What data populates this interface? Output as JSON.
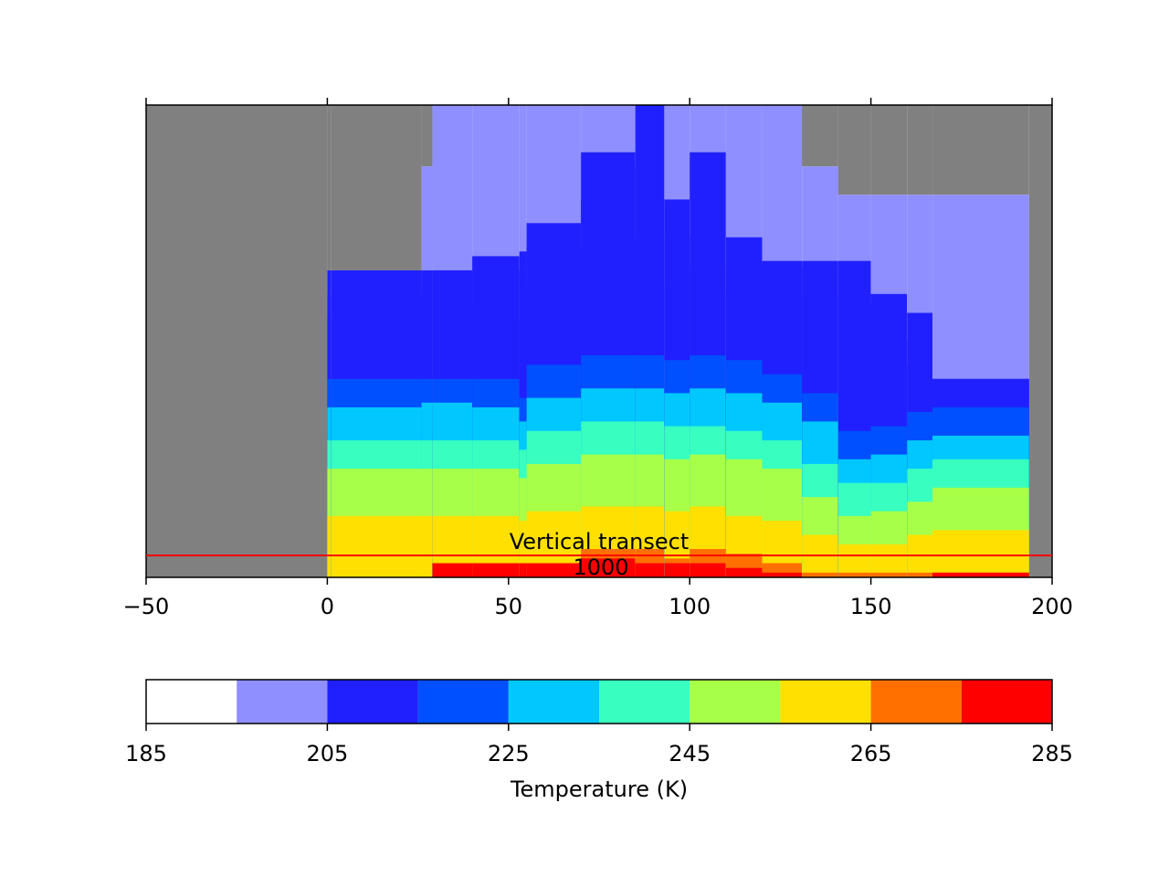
{
  "chart_data": {
    "type": "heatmap",
    "title": "",
    "xlabel": "",
    "ylabel": "",
    "xlim": [
      -50,
      200
    ],
    "x_ticks": [
      "−50",
      "0",
      "50",
      "100",
      "150",
      "200"
    ],
    "y_ticks_shown": false,
    "masked_region_color": "#808080",
    "masked_x_ranges": [
      [
        -50,
        0
      ],
      [
        193.5,
        200
      ]
    ],
    "annotations": [
      {
        "text": "Vertical transect",
        "color": "#000000"
      },
      {
        "text": "1000",
        "color": "#000000"
      }
    ],
    "transect_line_color": "#ff0000",
    "columns": [
      {
        "x_from": 0,
        "x_to": 1,
        "layer_tops": [
          0.65,
          0.65,
          0.65,
          0.6,
          0.55,
          0.42,
          0.36,
          0.29,
          0.23,
          0.13,
          0.0,
          0.0
        ]
      },
      {
        "x_from": 1,
        "x_to": 26,
        "layer_tops": [
          0.65,
          0.65,
          0.65,
          0.6,
          0.55,
          0.42,
          0.36,
          0.29,
          0.23,
          0.13,
          0.0,
          0.0
        ]
      },
      {
        "x_from": 26,
        "x_to": 29,
        "layer_tops": [
          0.87,
          0.87,
          0.65,
          0.6,
          0.55,
          0.42,
          0.37,
          0.29,
          0.23,
          0.13,
          0.0,
          0.0
        ]
      },
      {
        "x_from": 29,
        "x_to": 40,
        "layer_tops": [
          1.0,
          1.0,
          0.65,
          0.65,
          0.57,
          0.42,
          0.37,
          0.29,
          0.23,
          0.13,
          0.03,
          0.03
        ]
      },
      {
        "x_from": 40,
        "x_to": 53,
        "layer_tops": [
          1.0,
          1.0,
          0.68,
          0.65,
          0.57,
          0.42,
          0.36,
          0.29,
          0.23,
          0.13,
          0.03,
          0.03
        ]
      },
      {
        "x_from": 53,
        "x_to": 55,
        "layer_tops": [
          1.0,
          1.0,
          0.69,
          0.65,
          0.55,
          0.38,
          0.33,
          0.27,
          0.21,
          0.12,
          0.03,
          0.03
        ]
      },
      {
        "x_from": 55,
        "x_to": 70,
        "layer_tops": [
          1.0,
          1.0,
          0.75,
          0.7,
          0.62,
          0.45,
          0.38,
          0.31,
          0.24,
          0.14,
          0.03,
          0.03
        ]
      },
      {
        "x_from": 70,
        "x_to": 85,
        "layer_tops": [
          1.0,
          1.0,
          0.9,
          0.8,
          0.7,
          0.47,
          0.4,
          0.33,
          0.26,
          0.15,
          0.06,
          0.04
        ]
      },
      {
        "x_from": 85,
        "x_to": 93,
        "layer_tops": [
          1.0,
          1.0,
          1.0,
          0.87,
          0.72,
          0.47,
          0.4,
          0.33,
          0.26,
          0.15,
          0.06,
          0.03
        ]
      },
      {
        "x_from": 93,
        "x_to": 100,
        "layer_tops": [
          1.0,
          1.0,
          0.8,
          0.72,
          0.62,
          0.46,
          0.39,
          0.32,
          0.25,
          0.14,
          0.04,
          0.03
        ]
      },
      {
        "x_from": 100,
        "x_to": 110,
        "layer_tops": [
          1.0,
          1.0,
          0.9,
          0.72,
          0.66,
          0.47,
          0.4,
          0.32,
          0.26,
          0.15,
          0.06,
          0.03
        ]
      },
      {
        "x_from": 110,
        "x_to": 120,
        "layer_tops": [
          1.0,
          1.0,
          0.72,
          0.66,
          0.6,
          0.46,
          0.39,
          0.31,
          0.25,
          0.13,
          0.05,
          0.02
        ]
      },
      {
        "x_from": 120,
        "x_to": 131,
        "layer_tops": [
          1.0,
          1.0,
          0.67,
          0.66,
          0.6,
          0.43,
          0.37,
          0.29,
          0.23,
          0.12,
          0.03,
          0.01
        ]
      },
      {
        "x_from": 131,
        "x_to": 141,
        "layer_tops": [
          0.87,
          0.87,
          0.67,
          0.66,
          0.6,
          0.39,
          0.33,
          0.24,
          0.17,
          0.09,
          0.01,
          0.0
        ]
      },
      {
        "x_from": 141,
        "x_to": 150,
        "layer_tops": [
          0.81,
          0.81,
          0.67,
          0.66,
          0.6,
          0.31,
          0.25,
          0.2,
          0.13,
          0.07,
          0.01,
          0.0
        ]
      },
      {
        "x_from": 150,
        "x_to": 160,
        "layer_tops": [
          0.81,
          0.81,
          0.6,
          0.58,
          0.53,
          0.32,
          0.26,
          0.2,
          0.14,
          0.07,
          0.01,
          0.0
        ]
      },
      {
        "x_from": 160,
        "x_to": 167,
        "layer_tops": [
          0.81,
          0.81,
          0.56,
          0.5,
          0.45,
          0.35,
          0.29,
          0.23,
          0.16,
          0.09,
          0.01,
          0.0
        ]
      },
      {
        "x_from": 167,
        "x_to": 193.5,
        "layer_tops": [
          0.81,
          0.81,
          0.42,
          0.42,
          0.42,
          0.36,
          0.3,
          0.25,
          0.19,
          0.1,
          0.01,
          0.01
        ]
      }
    ],
    "layer_values": [
      190,
      200,
      210,
      210,
      210,
      220,
      230,
      240,
      250,
      260,
      270,
      280
    ],
    "colorbar": {
      "label": "Temperature (K)",
      "tick_labels": [
        "185",
        "205",
        "225",
        "245",
        "265",
        "285"
      ],
      "boundaries": [
        185,
        195,
        205,
        215,
        225,
        235,
        245,
        255,
        265,
        275,
        285
      ],
      "colors": [
        "#ffffff",
        "#8f8fff",
        "#2020ff",
        "#0050ff",
        "#00c8ff",
        "#38ffc0",
        "#a8ff48",
        "#ffe000",
        "#ff7000",
        "#ff0000"
      ]
    }
  }
}
